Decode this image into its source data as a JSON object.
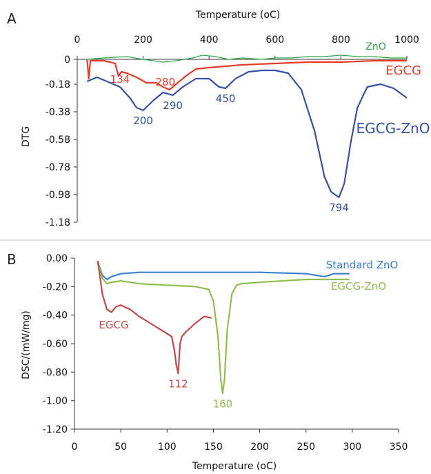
{
  "figure": {
    "separator_color": "#bbbbbb"
  },
  "panelA": {
    "label": "A",
    "x_title": "Temperature (oC)",
    "y_title": "DTG",
    "x_ticks": [
      "0",
      "200",
      "400",
      "600",
      "800",
      "1000"
    ],
    "y_ticks": [
      "0",
      "-0.18",
      "-0.38",
      "-0.58",
      "-0.78",
      "-0.98",
      "-1.18"
    ]
  },
  "panelB": {
    "label": "B",
    "x_title": "Temperature (oC)",
    "y_title": "DSC/(mW/mg)",
    "x_ticks": [
      "0",
      "50",
      "100",
      "150",
      "200",
      "250",
      "300",
      "350"
    ],
    "y_ticks": [
      "0.00",
      "-0.20",
      "-0.40",
      "-0.60",
      "-0.80",
      "-1.00",
      "-1.20"
    ]
  },
  "chart_data": [
    {
      "type": "line",
      "panel": "A",
      "xlabel": "Temperature (oC)",
      "ylabel": "DTG",
      "xlim": [
        0,
        1000
      ],
      "ylim": [
        -1.18,
        0
      ],
      "y_ticks": [
        0,
        -0.18,
        -0.38,
        -0.58,
        -0.78,
        -0.98,
        -1.18
      ],
      "grid": false,
      "series": [
        {
          "name": "ZnO",
          "color": "#2aa845",
          "x": [
            30,
            80,
            150,
            200,
            260,
            300,
            350,
            380,
            420,
            460,
            500,
            560,
            600,
            650,
            700,
            750,
            800,
            850,
            900,
            950,
            1000
          ],
          "y": [
            0.0,
            0.01,
            0.02,
            0.0,
            -0.02,
            -0.01,
            0.01,
            0.03,
            0.02,
            0.0,
            0.01,
            0.0,
            0.01,
            0.01,
            0.02,
            0.02,
            0.03,
            0.02,
            0.02,
            0.01,
            0.01
          ]
        },
        {
          "name": "EGCG",
          "color": "#e63a2a",
          "x": [
            30,
            35,
            40,
            60,
            80,
            100,
            115,
            125,
            134,
            150,
            180,
            210,
            240,
            260,
            280,
            300,
            330,
            360,
            400,
            450,
            500,
            600,
            700,
            800,
            900,
            1000
          ],
          "y": [
            0.0,
            -0.14,
            -0.01,
            -0.01,
            -0.01,
            -0.02,
            -0.03,
            -0.12,
            -0.09,
            -0.1,
            -0.13,
            -0.17,
            -0.17,
            -0.2,
            -0.22,
            -0.18,
            -0.12,
            -0.07,
            -0.06,
            -0.05,
            -0.04,
            -0.03,
            -0.02,
            -0.02,
            -0.01,
            -0.01
          ]
        },
        {
          "name": "EGCG-ZnO",
          "color": "#3550a8",
          "x": [
            30,
            60,
            100,
            130,
            160,
            180,
            200,
            230,
            260,
            290,
            320,
            360,
            400,
            430,
            450,
            480,
            520,
            560,
            600,
            640,
            680,
            720,
            750,
            770,
            794,
            810,
            830,
            850,
            880,
            920,
            960,
            1000
          ],
          "y": [
            -0.16,
            -0.13,
            -0.17,
            -0.2,
            -0.28,
            -0.35,
            -0.37,
            -0.3,
            -0.24,
            -0.26,
            -0.2,
            -0.14,
            -0.14,
            -0.2,
            -0.21,
            -0.14,
            -0.09,
            -0.08,
            -0.08,
            -0.1,
            -0.22,
            -0.52,
            -0.85,
            -0.96,
            -1.0,
            -0.9,
            -0.6,
            -0.35,
            -0.2,
            -0.18,
            -0.21,
            -0.28
          ]
        }
      ],
      "annotations": [
        {
          "text": "134",
          "x": 134,
          "y": -0.09,
          "series": "EGCG"
        },
        {
          "text": "280",
          "x": 280,
          "y": -0.22,
          "series": "EGCG"
        },
        {
          "text": "200",
          "x": 200,
          "y": -0.37,
          "series": "EGCG-ZnO"
        },
        {
          "text": "290",
          "x": 290,
          "y": -0.26,
          "series": "EGCG-ZnO"
        },
        {
          "text": "450",
          "x": 450,
          "y": -0.21,
          "series": "EGCG-ZnO"
        },
        {
          "text": "794",
          "x": 794,
          "y": -1.0,
          "series": "EGCG-ZnO"
        }
      ]
    },
    {
      "type": "line",
      "panel": "B",
      "xlabel": "Temperature (oC)",
      "ylabel": "DSC/(mW/mg)",
      "xlim": [
        0,
        350
      ],
      "ylim": [
        -1.2,
        0
      ],
      "grid": false,
      "series": [
        {
          "name": "Standard ZnO",
          "color": "#3a7fd0",
          "x": [
            25,
            30,
            35,
            40,
            50,
            70,
            100,
            150,
            200,
            250,
            260,
            270,
            280,
            290,
            297
          ],
          "y": [
            -0.02,
            -0.12,
            -0.15,
            -0.13,
            -0.11,
            -0.1,
            -0.1,
            -0.1,
            -0.1,
            -0.11,
            -0.12,
            -0.13,
            -0.11,
            -0.11,
            -0.11
          ]
        },
        {
          "name": "EGCG-ZnO",
          "color": "#8fbf4a",
          "x": [
            25,
            30,
            35,
            40,
            50,
            70,
            100,
            130,
            145,
            150,
            155,
            158,
            160,
            162,
            165,
            170,
            175,
            180,
            200,
            250,
            297
          ],
          "y": [
            -0.02,
            -0.14,
            -0.18,
            -0.17,
            -0.16,
            -0.18,
            -0.19,
            -0.2,
            -0.22,
            -0.3,
            -0.55,
            -0.85,
            -0.95,
            -0.85,
            -0.5,
            -0.25,
            -0.19,
            -0.18,
            -0.17,
            -0.15,
            -0.15
          ]
        },
        {
          "name": "EGCG",
          "color": "#c04a4a",
          "x": [
            25,
            28,
            30,
            35,
            40,
            45,
            50,
            60,
            70,
            80,
            90,
            100,
            105,
            108,
            110,
            112,
            114,
            116,
            120,
            130,
            140,
            148
          ],
          "y": [
            -0.02,
            -0.15,
            -0.25,
            -0.36,
            -0.38,
            -0.34,
            -0.33,
            -0.36,
            -0.41,
            -0.45,
            -0.49,
            -0.53,
            -0.55,
            -0.65,
            -0.75,
            -0.81,
            -0.6,
            -0.55,
            -0.52,
            -0.46,
            -0.41,
            -0.42
          ]
        }
      ],
      "annotations": [
        {
          "text": "112",
          "x": 112,
          "y": -0.81,
          "series": "EGCG"
        },
        {
          "text": "160",
          "x": 160,
          "y": -0.95,
          "series": "EGCG-ZnO"
        }
      ]
    }
  ]
}
